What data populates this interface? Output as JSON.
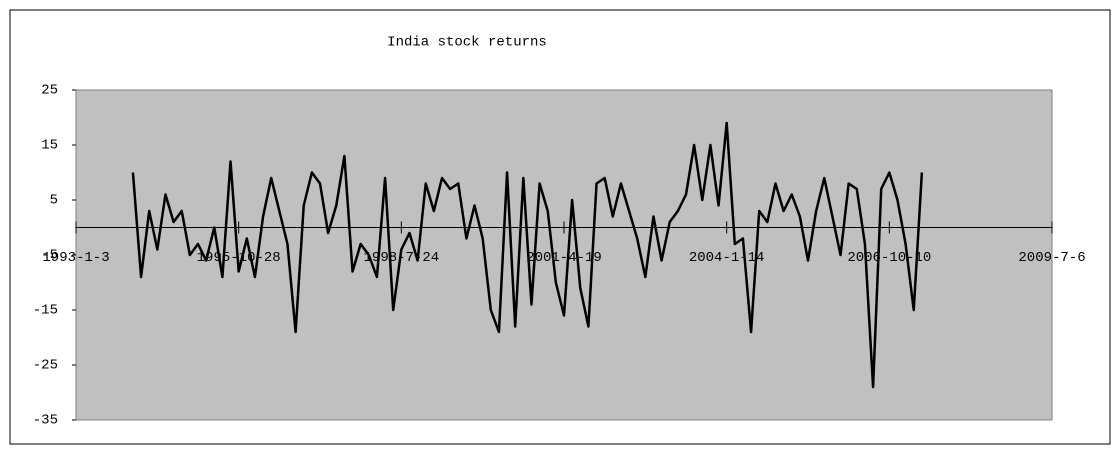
{
  "chart_data": {
    "type": "line",
    "title": "India stock returns",
    "categories": [
      "1993-1-3",
      null,
      null,
      null,
      null,
      null,
      null,
      null,
      null,
      null,
      null,
      null,
      null,
      null,
      null,
      null,
      null,
      null,
      null,
      null,
      "1995-10-28",
      null,
      null,
      null,
      null,
      null,
      null,
      null,
      null,
      null,
      null,
      null,
      null,
      null,
      null,
      null,
      null,
      null,
      null,
      null,
      "1998-7-24",
      null,
      null,
      null,
      null,
      null,
      null,
      null,
      null,
      null,
      null,
      null,
      null,
      null,
      null,
      null,
      null,
      null,
      null,
      null,
      "2001-4-19",
      null,
      null,
      null,
      null,
      null,
      null,
      null,
      null,
      null,
      null,
      null,
      null,
      null,
      null,
      null,
      null,
      null,
      null,
      null,
      "2004-1-14",
      null,
      null,
      null,
      null,
      null,
      null,
      null,
      null,
      null,
      null,
      null,
      null,
      null,
      null,
      null,
      null,
      null,
      null,
      null,
      "2006-10-10",
      null,
      null,
      null,
      null,
      null,
      null,
      null,
      null,
      null,
      null,
      null,
      null,
      null,
      null,
      null,
      null,
      null,
      null,
      null,
      "2009-7-6"
    ],
    "values": [
      null,
      null,
      null,
      null,
      null,
      null,
      null,
      10,
      -9,
      3,
      -4,
      6,
      1,
      3,
      -5,
      -3,
      -6,
      0,
      -9,
      12,
      -8,
      -2,
      -9,
      2,
      9,
      3,
      -3,
      -19,
      4,
      10,
      8,
      -1,
      4,
      13,
      -8,
      -3,
      -5,
      -9,
      9,
      -15,
      -4,
      -1,
      -6,
      8,
      3,
      9,
      7,
      8,
      -2,
      4,
      -2,
      -15,
      -19,
      10,
      -18,
      9,
      -14,
      8,
      3,
      -10,
      -16,
      5,
      -11,
      -18,
      8,
      9,
      2,
      8,
      3,
      -2,
      -9,
      2,
      -6,
      1,
      3,
      6,
      15,
      5,
      15,
      4,
      19,
      -3,
      -2,
      -19,
      3,
      1,
      8,
      3,
      6,
      2,
      -6,
      3,
      9,
      2,
      -5,
      8,
      7,
      -3,
      -29,
      7,
      10,
      5,
      -3,
      -15,
      10,
      null,
      null,
      null,
      null,
      null,
      null,
      null,
      null,
      null,
      null,
      null,
      null,
      null,
      null,
      null,
      null
    ],
    "color": "#000000",
    "ylim": [
      -35,
      25
    ],
    "yticks": [
      25,
      15,
      5,
      -5,
      -15,
      -25,
      -35
    ]
  }
}
